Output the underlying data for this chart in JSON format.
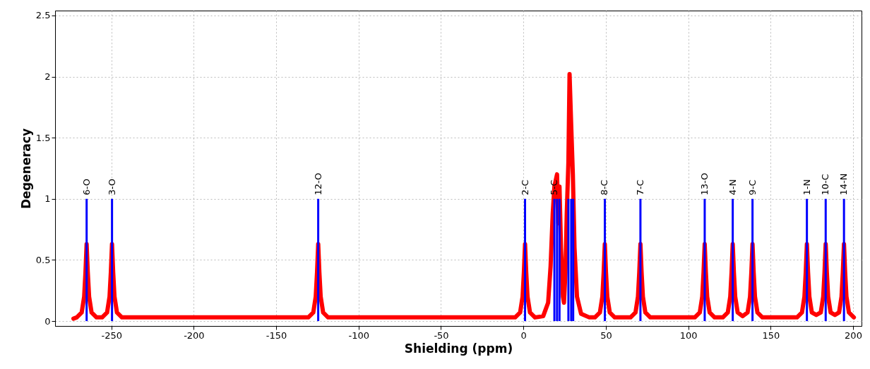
{
  "chart_data": {
    "type": "line",
    "xlabel": "Shielding (ppm)",
    "ylabel": "Degeneracy",
    "xlim": [
      -282,
      203
    ],
    "ylim": [
      -0.04,
      2.54
    ],
    "xticks": [
      -250,
      -200,
      -150,
      -100,
      -50,
      0,
      50,
      100,
      150,
      200
    ],
    "yticks": [
      0,
      0.5,
      1,
      1.5,
      2,
      2.5
    ],
    "grid": true,
    "line_style": "solid",
    "marker": "none",
    "series": [
      {
        "color": "#ff0000",
        "x": [
          -273,
          -271,
          -268,
          -266.5,
          -265.7,
          -265,
          -264.3,
          -263.5,
          -262,
          -259,
          -255.6,
          -252.6,
          -251.1,
          -250.3,
          -249.6,
          -248.9,
          -248.1,
          -246.6,
          -243.6,
          -130.5,
          -127.5,
          -126,
          -125.2,
          -124.5,
          -123.8,
          -123,
          -121.5,
          -118.5,
          -5,
          -2,
          -0.5,
          0.3,
          1,
          1.7,
          2.5,
          4,
          7,
          12,
          15,
          16.5,
          17.8,
          18.8,
          20.4,
          21.2,
          21.9,
          22.8,
          24,
          24.6,
          25.5,
          26.3,
          27.3,
          28,
          29,
          30,
          31,
          32.5,
          35,
          40,
          43.4,
          46.4,
          47.9,
          48.7,
          49.4,
          50.1,
          50.9,
          52.4,
          55.4,
          65,
          68,
          69.5,
          70.3,
          71,
          71.7,
          72.5,
          74,
          77,
          104,
          107,
          108.5,
          109.3,
          110,
          110.7,
          111.5,
          113,
          116,
          121,
          124,
          125.5,
          126.3,
          127,
          127.7,
          128.5,
          130,
          133,
          136,
          137.5,
          138.3,
          139,
          139.7,
          140.5,
          142,
          145,
          166,
          169,
          170.5,
          171.3,
          172,
          172.7,
          173.5,
          175,
          177.7,
          180.4,
          181.9,
          182.7,
          183.4,
          184.1,
          184.9,
          186.4,
          189,
          191.5,
          193,
          193.8,
          194.5,
          195.2,
          196,
          197.5,
          200.5
        ],
        "values": [
          0.02,
          0.03,
          0.07,
          0.2,
          0.4,
          0.63,
          0.4,
          0.2,
          0.07,
          0.03,
          0.03,
          0.07,
          0.2,
          0.4,
          0.63,
          0.4,
          0.2,
          0.07,
          0.03,
          0.03,
          0.07,
          0.2,
          0.4,
          0.63,
          0.4,
          0.2,
          0.07,
          0.03,
          0.03,
          0.07,
          0.2,
          0.4,
          0.63,
          0.4,
          0.2,
          0.07,
          0.03,
          0.04,
          0.15,
          0.45,
          0.88,
          1.1,
          1.2,
          0.8,
          1.1,
          0.6,
          0.2,
          0.15,
          0.4,
          0.88,
          1.3,
          2.02,
          1.6,
          1.2,
          0.6,
          0.2,
          0.06,
          0.03,
          0.03,
          0.07,
          0.2,
          0.4,
          0.63,
          0.4,
          0.2,
          0.07,
          0.03,
          0.03,
          0.07,
          0.2,
          0.4,
          0.63,
          0.4,
          0.2,
          0.07,
          0.03,
          0.03,
          0.07,
          0.2,
          0.4,
          0.63,
          0.4,
          0.2,
          0.07,
          0.03,
          0.03,
          0.07,
          0.2,
          0.4,
          0.63,
          0.4,
          0.2,
          0.07,
          0.04,
          0.07,
          0.2,
          0.4,
          0.63,
          0.4,
          0.2,
          0.07,
          0.03,
          0.03,
          0.07,
          0.2,
          0.4,
          0.63,
          0.4,
          0.2,
          0.07,
          0.05,
          0.07,
          0.2,
          0.4,
          0.63,
          0.4,
          0.2,
          0.07,
          0.05,
          0.07,
          0.2,
          0.4,
          0.63,
          0.4,
          0.2,
          0.07,
          0.03
        ]
      },
      {
        "type": "bar",
        "color": "#0000ff",
        "x": [
          -265,
          -249.6,
          -124.5,
          1,
          18.8,
          20.4,
          21.9,
          27.3,
          29,
          30.2,
          49.4,
          71,
          110,
          127,
          139,
          172,
          183.4,
          194.5
        ],
        "values": [
          1,
          1,
          1,
          1,
          1,
          1,
          1,
          1,
          1,
          1,
          1,
          1,
          1,
          1,
          1,
          1,
          1,
          1
        ]
      }
    ],
    "annotations": [
      {
        "text": "6-O",
        "x": -265,
        "y": 1
      },
      {
        "text": "3-O",
        "x": -249.6,
        "y": 1
      },
      {
        "text": "12-O",
        "x": -124.5,
        "y": 1
      },
      {
        "text": "2-C",
        "x": 1,
        "y": 1
      },
      {
        "text": "5-C",
        "x": 18.8,
        "y": 1
      },
      {
        "text": "8-C",
        "x": 49.4,
        "y": 1
      },
      {
        "text": "7-C",
        "x": 71,
        "y": 1
      },
      {
        "text": "13-O",
        "x": 110,
        "y": 1
      },
      {
        "text": "4-N",
        "x": 127,
        "y": 1
      },
      {
        "text": "9-C",
        "x": 139,
        "y": 1
      },
      {
        "text": "1-N",
        "x": 172,
        "y": 1
      },
      {
        "text": "10-C",
        "x": 183.4,
        "y": 1
      },
      {
        "text": "14-N",
        "x": 194.5,
        "y": 1
      }
    ]
  }
}
